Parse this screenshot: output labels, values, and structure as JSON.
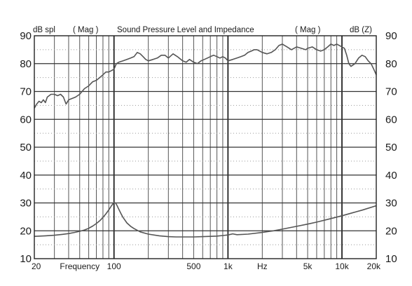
{
  "chart_data": {
    "type": "line",
    "title": "Sound Pressure Level  and Impedance",
    "header_left": "dB spl",
    "header_left_mag": "( Mag )",
    "header_right_mag": "( Mag )",
    "header_right": "dB (Z)",
    "x_scale": "log",
    "xlim": [
      20,
      20000
    ],
    "ylim": [
      10,
      90
    ],
    "y_ticks": [
      10,
      20,
      30,
      40,
      50,
      60,
      70,
      80,
      90
    ],
    "y_ticks_right": [
      10,
      20,
      30,
      40,
      50,
      60,
      70,
      80,
      90
    ],
    "x_tick_labels": [
      {
        "value": 20,
        "label": "20"
      },
      {
        "value": 50,
        "label": "Frequency"
      },
      {
        "value": 100,
        "label": "100"
      },
      {
        "value": 500,
        "label": "500"
      },
      {
        "value": 1000,
        "label": "1k"
      },
      {
        "value": 2000,
        "label": "Hz"
      },
      {
        "value": 5000,
        "label": "5k"
      },
      {
        "value": 10000,
        "label": "10k"
      },
      {
        "value": 20000,
        "label": "20k"
      }
    ],
    "grid": true,
    "series": [
      {
        "name": "Sound Pressure Level",
        "color": "#555555",
        "x": [
          20,
          21,
          22,
          23,
          24,
          25,
          26,
          28,
          30,
          32,
          34,
          36,
          38,
          40,
          43,
          46,
          50,
          55,
          60,
          65,
          70,
          75,
          80,
          85,
          90,
          95,
          100,
          105,
          110,
          120,
          130,
          140,
          150,
          160,
          170,
          180,
          190,
          200,
          220,
          240,
          260,
          280,
          300,
          330,
          360,
          400,
          430,
          460,
          500,
          540,
          580,
          620,
          660,
          700,
          750,
          800,
          850,
          900,
          950,
          1000,
          1100,
          1200,
          1300,
          1400,
          1500,
          1600,
          1700,
          1800,
          1900,
          2000,
          2200,
          2400,
          2600,
          2800,
          3000,
          3300,
          3600,
          4000,
          4400,
          4800,
          5000,
          5500,
          6000,
          6500,
          7000,
          7500,
          8000,
          8500,
          9000,
          9500,
          10000,
          10500,
          11000,
          11500,
          12000,
          13000,
          14000,
          15000,
          16000,
          17000,
          18000,
          19000,
          20000
        ],
        "y": [
          64,
          65.5,
          66.5,
          66,
          67,
          66,
          68,
          69,
          69,
          68.5,
          69,
          68,
          65.5,
          67,
          67.5,
          68,
          69,
          71,
          72,
          73.5,
          74,
          75,
          76,
          77,
          77,
          77.5,
          78,
          80,
          80.5,
          81,
          81.5,
          82,
          82.5,
          84,
          83.5,
          82.5,
          81.5,
          81,
          81.5,
          82,
          83,
          83,
          82,
          83.5,
          82.5,
          81,
          80.5,
          81.5,
          80.5,
          80,
          81,
          81.5,
          82,
          82.5,
          83,
          82.5,
          82,
          82.5,
          82,
          81,
          81.5,
          82,
          82.5,
          83,
          84,
          84.5,
          85,
          85,
          84.5,
          84,
          83.5,
          84,
          85,
          86.5,
          87,
          86,
          85,
          86,
          85.5,
          85,
          85.5,
          86,
          85,
          84.5,
          85,
          86,
          87,
          86.5,
          87,
          86.5,
          86,
          85.5,
          83,
          80,
          79,
          80,
          82,
          83,
          82.5,
          81,
          80,
          78,
          76
        ]
      },
      {
        "name": "Impedance",
        "color": "#555555",
        "x": [
          20,
          25,
          30,
          35,
          40,
          45,
          50,
          55,
          60,
          65,
          70,
          75,
          80,
          85,
          90,
          95,
          100,
          103,
          106,
          110,
          115,
          120,
          130,
          140,
          150,
          170,
          200,
          250,
          300,
          350,
          400,
          500,
          600,
          700,
          800,
          900,
          1000,
          1100,
          1200,
          1500,
          2000,
          2500,
          3000,
          4000,
          5000,
          6000,
          8000,
          10000,
          12000,
          15000,
          20000
        ],
        "y": [
          18,
          18.2,
          18.4,
          18.7,
          19,
          19.4,
          19.8,
          20.3,
          20.9,
          21.7,
          22.6,
          23.6,
          24.8,
          26.1,
          27.5,
          29,
          30.2,
          30,
          29.2,
          27.8,
          26.2,
          24.8,
          22.8,
          21.6,
          20.8,
          19.6,
          18.8,
          18.2,
          17.9,
          17.8,
          17.8,
          17.8,
          17.9,
          18,
          18.1,
          18.3,
          18.5,
          18.9,
          18.6,
          18.8,
          19.4,
          20,
          20.6,
          21.6,
          22.4,
          23.1,
          24.4,
          25.4,
          26.3,
          27.4,
          29
        ]
      }
    ]
  }
}
